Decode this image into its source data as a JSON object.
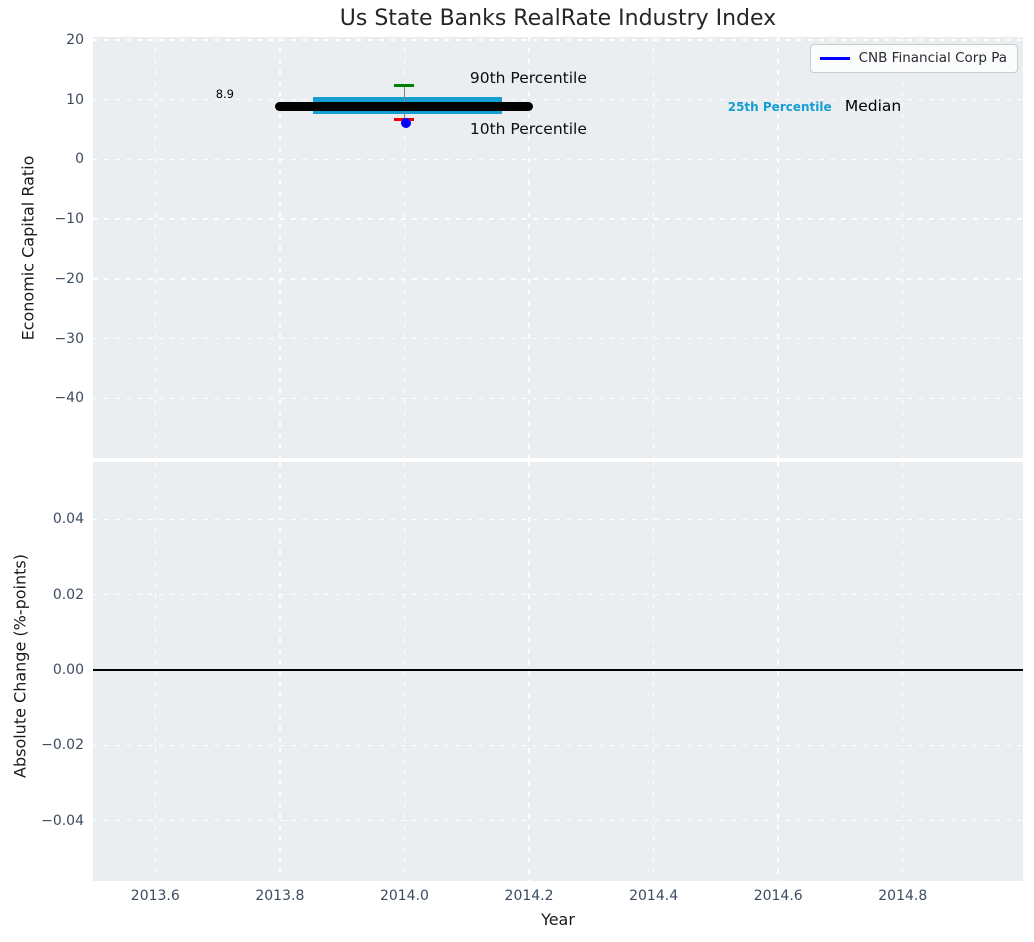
{
  "title": "Us State Banks RealRate Industry Index",
  "legend": {
    "label": "CNB Financial Corp Pa",
    "line_color": "#0000ff"
  },
  "colors": {
    "plot_background": "#eaeef0",
    "grid": "#ffffff",
    "tick_label": "#3d4c61",
    "median_black": "#000000",
    "percentile_25_cyan": "#149ed1",
    "percentile_90_green": "#008000",
    "percentile_10_red": "#ee0000",
    "series_blue": "#0000ff",
    "errorbar_stem_gray": "#808080"
  },
  "chart_data": [
    {
      "type": "line",
      "title": "Us State Banks RealRate Industry Index",
      "xlabel": "",
      "ylabel": "Economic Capital Ratio",
      "xlim": [
        2013.5,
        2014.993
      ],
      "ylim": [
        -50,
        20.5
      ],
      "grid": {
        "on": true,
        "style": "dashed",
        "color": "#ffffff"
      },
      "legend_position": "upper right",
      "show_x_tick_labels": false,
      "xticks": {
        "values": [
          2013.6,
          2013.8,
          2014.0,
          2014.2,
          2014.4,
          2014.6,
          2014.8
        ],
        "labels": [
          "2013.6",
          "2013.8",
          "2014.0",
          "2014.2",
          "2014.4",
          "2014.6",
          "2014.8"
        ]
      },
      "yticks": {
        "values": [
          20,
          10,
          0,
          -10,
          -20,
          -30,
          -40
        ],
        "labels": [
          "20",
          "10",
          "0",
          "−10",
          "−20",
          "−30",
          "−40"
        ]
      },
      "marks": [
        {
          "kind": "thickline",
          "name": "percentile-25-band",
          "label": "25th Percentile",
          "x0": 2013.853,
          "x1": 2014.157,
          "y": 8.95,
          "lw": 17,
          "color": "#149ed1",
          "rounded": false,
          "z": 2
        },
        {
          "kind": "vline",
          "name": "errorbar-stem",
          "x": 2014.0,
          "y0": 6.65,
          "y1": 12.4,
          "lw": 1.5,
          "color": "#808080",
          "z": 3
        },
        {
          "kind": "thickline",
          "name": "median-line",
          "label": "Median",
          "x0": 2013.792,
          "x1": 2014.206,
          "y": 8.9,
          "lw": 9,
          "color": "#000000",
          "rounded": true,
          "z": 4
        },
        {
          "kind": "cap",
          "name": "percentile-90-cap",
          "label": "90th Percentile",
          "x0": 2013.984,
          "x1": 2014.016,
          "y": 12.4,
          "lw": 3.2,
          "color": "#008000",
          "z": 5
        },
        {
          "kind": "cap",
          "name": "percentile-10-cap",
          "label": "10th Percentile",
          "x0": 2013.984,
          "x1": 2014.016,
          "y": 6.65,
          "lw": 3.2,
          "color": "#ee0000",
          "z": 5
        },
        {
          "kind": "point",
          "name": "cnb-financial-point",
          "label": "CNB Financial Corp Pa",
          "x": 2014.002,
          "y": 6.1,
          "r": 5,
          "color": "#0000ff",
          "z": 6
        }
      ],
      "annotations": [
        {
          "text": "8.9",
          "x": 2013.697,
          "y": 11.0,
          "ha": "left",
          "size": 11.5,
          "bold": false,
          "color": "#000000",
          "name": "median-value-label"
        },
        {
          "text": "90th Percentile",
          "x": 2014.105,
          "y": 13.6,
          "ha": "left",
          "size": 15.5,
          "bold": false,
          "color": "#0d0d0d",
          "name": "percentile-90-label"
        },
        {
          "text": "10th Percentile",
          "x": 2014.105,
          "y": 5.1,
          "ha": "left",
          "size": 15.5,
          "bold": false,
          "color": "#0d0d0d",
          "name": "percentile-10-label"
        },
        {
          "text": "25th Percentile",
          "x": 2014.519,
          "y": 8.82,
          "ha": "left",
          "size": 12,
          "bold": true,
          "color": "#149ed1",
          "name": "percentile-25-label"
        },
        {
          "text": "Median",
          "x": 2014.707,
          "y": 8.9,
          "ha": "left",
          "size": 15.5,
          "bold": false,
          "color": "#000000",
          "name": "median-label"
        }
      ]
    },
    {
      "type": "line",
      "title": "",
      "xlabel": "Year",
      "ylabel": "Absolute Change (%-points)",
      "xlim": [
        2013.5,
        2014.993
      ],
      "ylim": [
        -0.056,
        0.0552
      ],
      "grid": {
        "on": true,
        "style": "dashed",
        "color": "#ffffff"
      },
      "show_x_tick_labels": true,
      "xticks": {
        "values": [
          2013.6,
          2013.8,
          2014.0,
          2014.2,
          2014.4,
          2014.6,
          2014.8
        ],
        "labels": [
          "2013.6",
          "2013.8",
          "2014.0",
          "2014.2",
          "2014.4",
          "2014.6",
          "2014.8"
        ]
      },
      "yticks": {
        "values": [
          0.04,
          0.02,
          0.0,
          -0.02,
          -0.04
        ],
        "labels": [
          "0.04",
          "0.02",
          "0.00",
          "−0.02",
          "−0.04"
        ]
      },
      "marks": [
        {
          "kind": "hline",
          "name": "zero-line",
          "y": 0,
          "lw": 1.8,
          "color": "#000000",
          "z": 5
        }
      ],
      "annotations": []
    }
  ]
}
